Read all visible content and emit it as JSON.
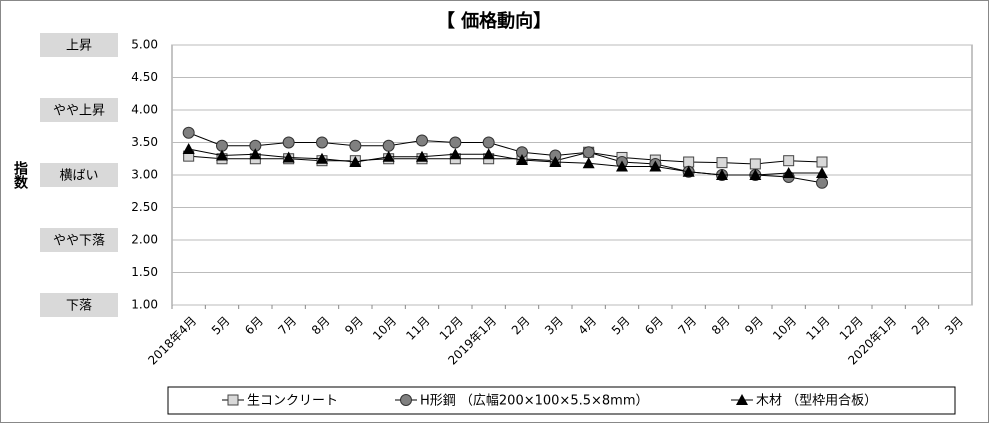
{
  "chart_data": {
    "type": "line",
    "title": "【 価格動向】",
    "y_label": "指数",
    "level_labels": [
      {
        "value": 5,
        "label": "上昇"
      },
      {
        "value": 4,
        "label": "やや上昇"
      },
      {
        "value": 3,
        "label": "横ばい"
      },
      {
        "value": 2,
        "label": "やや下落"
      },
      {
        "value": 1,
        "label": "下落"
      }
    ],
    "categories": [
      "2018年4月",
      "5月",
      "6月",
      "7月",
      "8月",
      "9月",
      "10月",
      "11月",
      "12月",
      "2019年1月",
      "2月",
      "3月",
      "4月",
      "5月",
      "6月",
      "7月",
      "8月",
      "9月",
      "10月",
      "11月",
      "12月",
      "2020年1月",
      "2月",
      "3月"
    ],
    "series": [
      {
        "name": "生コンクリート",
        "color": "#d9d9d9",
        "marker": "square",
        "values": [
          3.29,
          3.25,
          3.25,
          3.25,
          3.22,
          3.22,
          3.25,
          3.25,
          3.25,
          3.25,
          3.25,
          3.22,
          3.35,
          3.27,
          3.23,
          3.2,
          3.19,
          3.17,
          3.22,
          3.2,
          null,
          null,
          null,
          null
        ]
      },
      {
        "name": "H形鋼 （広幅200×100×5.5×8mm）",
        "color": "#808080",
        "marker": "circle",
        "values": [
          3.65,
          3.45,
          3.45,
          3.5,
          3.5,
          3.45,
          3.45,
          3.53,
          3.5,
          3.5,
          3.35,
          3.3,
          3.35,
          3.2,
          3.17,
          3.05,
          3.0,
          3.0,
          2.97,
          2.88,
          null,
          null,
          null,
          null
        ]
      },
      {
        "name": "木材 （型枠用合板）",
        "color": "#000000",
        "marker": "triangle",
        "values": [
          3.4,
          3.3,
          3.32,
          3.27,
          3.25,
          3.2,
          3.28,
          3.28,
          3.32,
          3.32,
          3.23,
          3.2,
          3.18,
          3.13,
          3.13,
          3.05,
          3.0,
          3.0,
          3.03,
          3.03,
          null,
          null,
          null,
          null
        ]
      }
    ],
    "ylim": [
      1,
      5
    ],
    "yticks": [
      {
        "value": 1,
        "label": "1.00"
      },
      {
        "value": 1.5,
        "label": "1.50"
      },
      {
        "value": 2,
        "label": "2.00"
      },
      {
        "value": 2.5,
        "label": "2.50"
      },
      {
        "value": 3,
        "label": "3.00"
      },
      {
        "value": 3.5,
        "label": "3.50"
      },
      {
        "value": 4,
        "label": "4.00"
      },
      {
        "value": 4.5,
        "label": "4.50"
      },
      {
        "value": 5,
        "label": "5.00"
      }
    ],
    "grid": true,
    "legend": "bottom"
  }
}
